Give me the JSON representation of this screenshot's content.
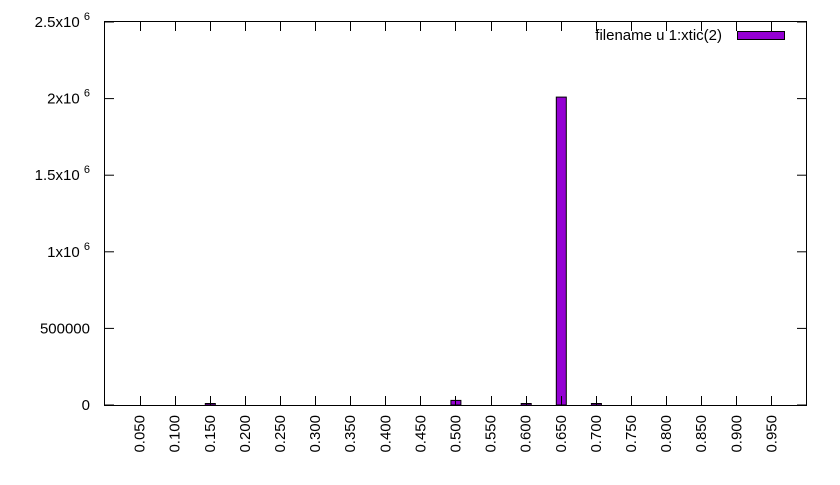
{
  "chart_data": {
    "type": "bar",
    "categories": [
      "0.050",
      "0.100",
      "0.150",
      "0.200",
      "0.250",
      "0.300",
      "0.350",
      "0.400",
      "0.450",
      "0.500",
      "0.550",
      "0.600",
      "0.650",
      "0.700",
      "0.750",
      "0.800",
      "0.850",
      "0.900",
      "0.950"
    ],
    "series": [
      {
        "name": "filename u 1:xtic(2)",
        "color": "#9400d3",
        "values": [
          0,
          0,
          3000,
          0,
          0,
          0,
          0,
          0,
          0,
          30000,
          0,
          5000,
          2010000,
          5000,
          0,
          0,
          0,
          0,
          0
        ]
      }
    ],
    "y_ticks": [
      {
        "value": 0,
        "mant": "0",
        "exp": ""
      },
      {
        "value": 500000,
        "mant": "500000",
        "exp": ""
      },
      {
        "value": 1000000,
        "mant": "1x10",
        "exp": "6"
      },
      {
        "value": 1500000,
        "mant": "1.5x10",
        "exp": "6"
      },
      {
        "value": 2000000,
        "mant": "2x10",
        "exp": "6"
      },
      {
        "value": 2500000,
        "mant": "2.5x10",
        "exp": "6"
      }
    ],
    "ylim": [
      0,
      2500000
    ],
    "x_ticks_at_bar_centers": false,
    "legend_position": "top-right",
    "grid": false,
    "title": "",
    "xlabel": "",
    "ylabel": ""
  }
}
